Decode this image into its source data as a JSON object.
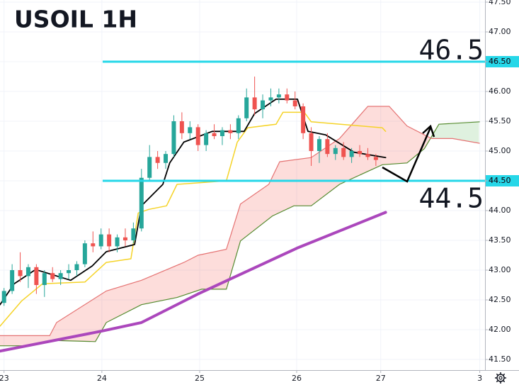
{
  "chart_data": {
    "type": "candlestick",
    "title": "USOIL 1H",
    "xlim": [
      0,
      120
    ],
    "ylim": [
      41.5,
      47.5
    ],
    "xticks": [
      {
        "value": 1,
        "label": "23"
      },
      {
        "value": 25.2,
        "label": "24"
      },
      {
        "value": 49.4,
        "label": "25"
      },
      {
        "value": 73.4,
        "label": "26"
      },
      {
        "value": 94.2,
        "label": "27"
      },
      {
        "value": 118.7,
        "label": "3"
      }
    ],
    "yticks": [
      {
        "value": 47.5,
        "label": "47.50"
      },
      {
        "value": 47,
        "label": "47.00"
      },
      {
        "value": 46.5,
        "label": "46.50"
      },
      {
        "value": 46,
        "label": "46.00"
      },
      {
        "value": 45.5,
        "label": "45.50"
      },
      {
        "value": 45,
        "label": "45.00"
      },
      {
        "value": 44.5,
        "label": "44.50"
      },
      {
        "value": 44,
        "label": "44.00"
      },
      {
        "value": 43.5,
        "label": "43.50"
      },
      {
        "value": 43,
        "label": "43.00"
      },
      {
        "value": 42.5,
        "label": "42.50"
      },
      {
        "value": 42,
        "label": "42.00"
      },
      {
        "value": 41.5,
        "label": "41.50"
      }
    ],
    "grid": true,
    "up_color": "#26a69a",
    "down_color": "#ef5350",
    "candles": {
      "x": [
        1,
        3,
        5,
        7,
        9,
        11,
        13,
        15,
        17,
        19,
        21,
        23,
        25,
        27,
        29,
        31,
        33,
        35,
        37,
        39,
        41,
        43,
        45,
        47,
        49,
        51,
        53,
        55,
        57,
        59,
        61,
        63,
        65,
        67,
        69,
        71,
        73,
        75,
        77,
        79,
        81,
        83,
        85,
        87,
        89,
        91,
        93
      ],
      "open": [
        42.45,
        42.65,
        43.0,
        42.9,
        43.05,
        42.75,
        42.95,
        42.85,
        42.95,
        43.0,
        43.1,
        43.45,
        43.4,
        43.6,
        43.4,
        43.55,
        43.5,
        43.7,
        44.55,
        44.9,
        44.8,
        44.95,
        45.5,
        45.3,
        45.4,
        45.1,
        45.3,
        45.25,
        45.35,
        45.3,
        45.55,
        45.9,
        45.7,
        45.85,
        45.9,
        45.95,
        45.85,
        45.75,
        45.3,
        45.0,
        45.2,
        44.95,
        45.05,
        44.9,
        45.0,
        44.95,
        44.9
      ],
      "high": [
        42.7,
        43.1,
        43.3,
        43.1,
        43.1,
        43.0,
        43.05,
        43.0,
        43.1,
        43.15,
        43.5,
        43.65,
        43.7,
        43.7,
        43.6,
        43.7,
        43.8,
        44.7,
        45.1,
        45.0,
        45.0,
        45.6,
        45.65,
        45.5,
        45.45,
        45.35,
        45.45,
        45.4,
        45.45,
        45.6,
        46.05,
        46.25,
        45.95,
        46.05,
        46.05,
        46.05,
        46.0,
        45.8,
        45.4,
        45.25,
        45.3,
        45.1,
        45.15,
        45.05,
        45.1,
        45.05,
        44.95
      ],
      "low": [
        42.4,
        42.6,
        42.8,
        42.7,
        42.6,
        42.55,
        42.8,
        42.75,
        42.85,
        42.9,
        43.05,
        43.3,
        43.35,
        43.3,
        43.3,
        43.4,
        43.45,
        43.65,
        44.5,
        44.7,
        44.7,
        44.9,
        45.2,
        45.2,
        45.0,
        45.0,
        45.2,
        45.1,
        45.2,
        45.2,
        45.5,
        45.6,
        45.55,
        45.75,
        45.8,
        45.8,
        45.7,
        45.2,
        44.75,
        44.8,
        44.9,
        44.85,
        44.85,
        44.8,
        44.9,
        44.85,
        44.75
      ],
      "close": [
        42.65,
        43.0,
        42.9,
        43.05,
        42.75,
        42.95,
        42.85,
        42.95,
        43.0,
        43.1,
        43.45,
        43.4,
        43.6,
        43.4,
        43.55,
        43.5,
        43.7,
        44.55,
        44.9,
        44.8,
        44.95,
        45.5,
        45.3,
        45.4,
        45.1,
        45.3,
        45.25,
        45.35,
        45.3,
        45.55,
        45.9,
        45.7,
        45.85,
        45.9,
        45.95,
        45.85,
        45.75,
        45.3,
        45.0,
        45.2,
        44.95,
        45.05,
        44.9,
        45.0,
        44.95,
        44.9,
        44.85
      ]
    },
    "cloud": {
      "up_fill": "rgba(76,175,80,0.18)",
      "down_fill": "rgba(244,67,54,0.18)",
      "span_a": {
        "color": "#558b2f",
        "x": [
          0,
          7,
          13.1,
          23.6,
          26.3,
          35,
          43.8,
          49.9,
          56,
          59.5,
          67.4,
          72.7,
          77,
          84,
          94.6,
          100.7,
          105,
          108.6,
          118.7
        ],
        "values": [
          41.73,
          41.73,
          41.82,
          41.8,
          42.12,
          42.42,
          42.54,
          42.68,
          42.68,
          43.49,
          43.91,
          44.08,
          44.08,
          44.44,
          44.77,
          44.8,
          45.04,
          45.45,
          45.49
        ]
      },
      "span_b": {
        "color": "#e57373",
        "x": [
          0,
          12.3,
          14,
          26.3,
          35,
          45.5,
          49,
          56,
          59.5,
          66.5,
          69.2,
          77,
          84,
          91,
          96.3,
          100.7,
          106.8,
          112,
          118.7
        ],
        "values": [
          41.9,
          41.9,
          42.12,
          42.65,
          42.83,
          43.13,
          43.25,
          43.35,
          44.11,
          44.44,
          44.82,
          44.89,
          45.21,
          45.75,
          45.75,
          45.42,
          45.21,
          45.21,
          45.13
        ]
      }
    },
    "lines": [
      {
        "color": "#f5d327",
        "width": 1.5,
        "x": [
          0,
          5.3,
          10.5,
          21,
          26.3,
          32.4,
          34.2,
          36.8,
          41.2,
          43.8,
          56,
          58.7,
          61.3,
          68.3,
          70,
          75.3,
          77,
          94.6,
          95.4
        ],
        "values": [
          42.06,
          42.48,
          42.77,
          42.8,
          43.13,
          43.19,
          43.96,
          44.02,
          44.08,
          44.44,
          44.5,
          45.15,
          45.39,
          45.45,
          45.65,
          45.65,
          45.49,
          45.39,
          45.33
        ]
      },
      {
        "color": "#000000",
        "width": 1.8,
        "x": [
          0,
          3.5,
          8.8,
          17.5,
          22.8,
          26.3,
          33.3,
          35,
          40.3,
          42,
          45.5,
          52.5,
          60.4,
          63,
          68.3,
          73.6,
          76.2,
          80.6,
          87.6,
          95.4
        ],
        "values": [
          42.42,
          42.77,
          43.01,
          42.83,
          43.07,
          43.31,
          43.43,
          44.08,
          44.44,
          44.8,
          45.15,
          45.33,
          45.33,
          45.63,
          45.87,
          45.87,
          45.33,
          45.27,
          44.98,
          44.89
        ]
      },
      {
        "color": "#ab47bc",
        "width": 4,
        "x": [
          0,
          25.4,
          35,
          49,
          73.5,
          95.4
        ],
        "values": [
          41.64,
          41.98,
          42.12,
          42.6,
          43.37,
          43.97
        ]
      }
    ],
    "levels": [
      {
        "value": 46.5,
        "axis_label": "46.50",
        "x_start": 25.4,
        "color": "#26d7e8"
      },
      {
        "value": 44.5,
        "axis_label": "44.50",
        "x_start": 25.4,
        "color": "#26d7e8"
      }
    ]
  }
}
